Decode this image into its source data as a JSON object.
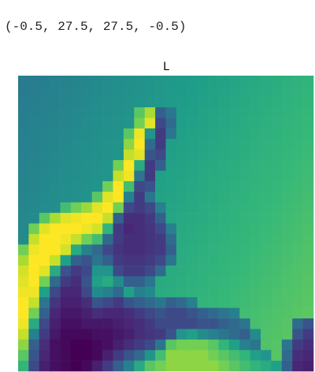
{
  "output_text": "(-0.5, 27.5, 27.5, -0.5)",
  "chart_data": {
    "type": "heatmap",
    "title": "L",
    "colormap": "viridis",
    "z": [
      [
        115,
        117,
        119,
        121,
        123,
        125,
        127,
        129,
        131,
        133,
        135,
        137,
        139,
        141,
        143,
        145,
        147,
        149,
        151,
        153,
        155,
        157,
        159,
        161,
        163,
        165,
        167,
        169
      ],
      [
        116,
        118,
        120,
        122,
        124,
        126,
        128,
        130,
        132,
        134,
        136,
        138,
        140,
        142,
        144,
        146,
        148,
        150,
        152,
        154,
        156,
        158,
        160,
        162,
        164,
        166,
        168,
        170
      ],
      [
        117,
        119,
        121,
        123,
        125,
        127,
        129,
        131,
        133,
        135,
        137,
        139,
        141,
        143,
        145,
        147,
        149,
        151,
        153,
        155,
        157,
        159,
        161,
        163,
        165,
        167,
        169,
        171
      ],
      [
        118,
        120,
        122,
        124,
        126,
        128,
        130,
        132,
        134,
        136,
        138,
        190,
        220,
        90,
        110,
        148,
        150,
        152,
        154,
        156,
        158,
        160,
        162,
        164,
        166,
        168,
        170,
        172
      ],
      [
        119,
        121,
        123,
        125,
        127,
        129,
        131,
        133,
        135,
        137,
        139,
        200,
        240,
        70,
        100,
        149,
        151,
        153,
        155,
        157,
        159,
        161,
        163,
        165,
        167,
        169,
        171,
        173
      ],
      [
        120,
        122,
        124,
        126,
        128,
        130,
        132,
        134,
        136,
        138,
        190,
        245,
        140,
        60,
        110,
        150,
        152,
        154,
        156,
        158,
        160,
        162,
        164,
        166,
        168,
        170,
        172,
        174
      ],
      [
        121,
        123,
        125,
        127,
        129,
        131,
        133,
        135,
        137,
        139,
        210,
        250,
        100,
        60,
        149,
        151,
        153,
        155,
        157,
        159,
        161,
        163,
        165,
        167,
        169,
        171,
        173,
        175
      ],
      [
        122,
        124,
        126,
        128,
        130,
        132,
        134,
        136,
        138,
        140,
        230,
        240,
        80,
        70,
        150,
        152,
        154,
        156,
        158,
        160,
        162,
        164,
        166,
        168,
        170,
        172,
        174,
        176
      ],
      [
        123,
        125,
        127,
        129,
        131,
        133,
        135,
        137,
        139,
        200,
        250,
        160,
        60,
        90,
        151,
        153,
        155,
        157,
        159,
        161,
        163,
        165,
        167,
        169,
        171,
        173,
        175,
        177
      ],
      [
        124,
        126,
        128,
        130,
        132,
        134,
        136,
        138,
        140,
        230,
        245,
        110,
        60,
        150,
        152,
        154,
        156,
        158,
        160,
        162,
        164,
        166,
        168,
        170,
        172,
        174,
        176,
        178
      ],
      [
        125,
        127,
        129,
        131,
        133,
        135,
        137,
        139,
        200,
        250,
        180,
        70,
        80,
        151,
        153,
        155,
        157,
        159,
        161,
        163,
        165,
        167,
        169,
        171,
        173,
        175,
        177,
        179
      ],
      [
        126,
        128,
        130,
        132,
        134,
        136,
        138,
        190,
        240,
        250,
        120,
        60,
        110,
        152,
        154,
        156,
        158,
        160,
        162,
        164,
        166,
        168,
        170,
        172,
        174,
        176,
        178,
        180
      ],
      [
        127,
        129,
        131,
        133,
        180,
        200,
        215,
        240,
        250,
        200,
        70,
        60,
        70,
        120,
        155,
        157,
        159,
        161,
        163,
        165,
        167,
        169,
        171,
        173,
        175,
        177,
        179,
        181
      ],
      [
        128,
        130,
        190,
        220,
        240,
        245,
        250,
        250,
        230,
        90,
        50,
        50,
        60,
        90,
        156,
        158,
        160,
        162,
        164,
        166,
        168,
        170,
        172,
        174,
        176,
        178,
        180,
        182
      ],
      [
        129,
        200,
        240,
        250,
        250,
        250,
        245,
        235,
        170,
        60,
        45,
        50,
        55,
        70,
        120,
        159,
        161,
        163,
        165,
        167,
        169,
        171,
        173,
        175,
        177,
        179,
        181,
        183
      ],
      [
        130,
        230,
        250,
        250,
        245,
        230,
        200,
        180,
        100,
        60,
        50,
        50,
        55,
        60,
        100,
        160,
        162,
        164,
        166,
        168,
        170,
        172,
        174,
        176,
        178,
        180,
        182,
        184
      ],
      [
        200,
        245,
        250,
        250,
        235,
        160,
        120,
        100,
        70,
        55,
        50,
        50,
        55,
        60,
        90,
        161,
        163,
        165,
        167,
        169,
        171,
        173,
        175,
        177,
        179,
        181,
        183,
        185
      ],
      [
        220,
        250,
        250,
        230,
        150,
        90,
        80,
        110,
        90,
        60,
        55,
        55,
        60,
        70,
        110,
        162,
        164,
        166,
        168,
        170,
        172,
        174,
        176,
        178,
        180,
        182,
        184,
        186
      ],
      [
        235,
        250,
        240,
        160,
        80,
        60,
        70,
        140,
        140,
        70,
        60,
        60,
        70,
        100,
        161,
        163,
        165,
        167,
        169,
        171,
        173,
        175,
        177,
        179,
        181,
        183,
        185,
        187
      ],
      [
        240,
        250,
        200,
        100,
        60,
        50,
        80,
        150,
        160,
        130,
        90,
        90,
        110,
        160,
        162,
        164,
        166,
        168,
        170,
        172,
        174,
        176,
        178,
        180,
        182,
        184,
        186,
        188
      ],
      [
        245,
        245,
        150,
        70,
        45,
        45,
        70,
        130,
        120,
        100,
        150,
        120,
        130,
        161,
        163,
        165,
        167,
        169,
        171,
        173,
        175,
        177,
        179,
        181,
        183,
        185,
        187,
        189
      ],
      [
        250,
        230,
        110,
        55,
        40,
        40,
        50,
        80,
        70,
        60,
        80,
        90,
        100,
        110,
        90,
        100,
        120,
        170,
        172,
        174,
        176,
        178,
        180,
        182,
        184,
        186,
        188,
        190
      ],
      [
        250,
        200,
        90,
        45,
        35,
        35,
        40,
        50,
        45,
        45,
        50,
        60,
        70,
        80,
        70,
        70,
        80,
        90,
        100,
        110,
        120,
        179,
        181,
        183,
        185,
        187,
        189,
        191
      ],
      [
        245,
        160,
        70,
        40,
        30,
        30,
        35,
        35,
        35,
        40,
        45,
        50,
        60,
        70,
        70,
        70,
        70,
        80,
        80,
        90,
        100,
        110,
        182,
        184,
        186,
        188,
        100,
        80
      ],
      [
        230,
        120,
        60,
        35,
        25,
        25,
        25,
        30,
        30,
        35,
        40,
        50,
        55,
        60,
        80,
        140,
        150,
        130,
        120,
        110,
        100,
        90,
        130,
        185,
        187,
        189,
        80,
        60
      ],
      [
        210,
        90,
        50,
        30,
        25,
        20,
        20,
        25,
        30,
        40,
        50,
        60,
        70,
        110,
        190,
        200,
        200,
        200,
        190,
        170,
        150,
        120,
        110,
        186,
        188,
        110,
        60,
        50
      ],
      [
        190,
        80,
        45,
        30,
        25,
        20,
        20,
        25,
        40,
        60,
        80,
        100,
        140,
        180,
        210,
        210,
        210,
        210,
        200,
        190,
        180,
        170,
        150,
        140,
        189,
        100,
        50,
        45
      ],
      [
        170,
        70,
        40,
        30,
        25,
        20,
        25,
        40,
        60,
        90,
        120,
        160,
        190,
        200,
        210,
        210,
        210,
        210,
        210,
        200,
        190,
        180,
        170,
        160,
        150,
        90,
        45,
        40
      ]
    ]
  }
}
